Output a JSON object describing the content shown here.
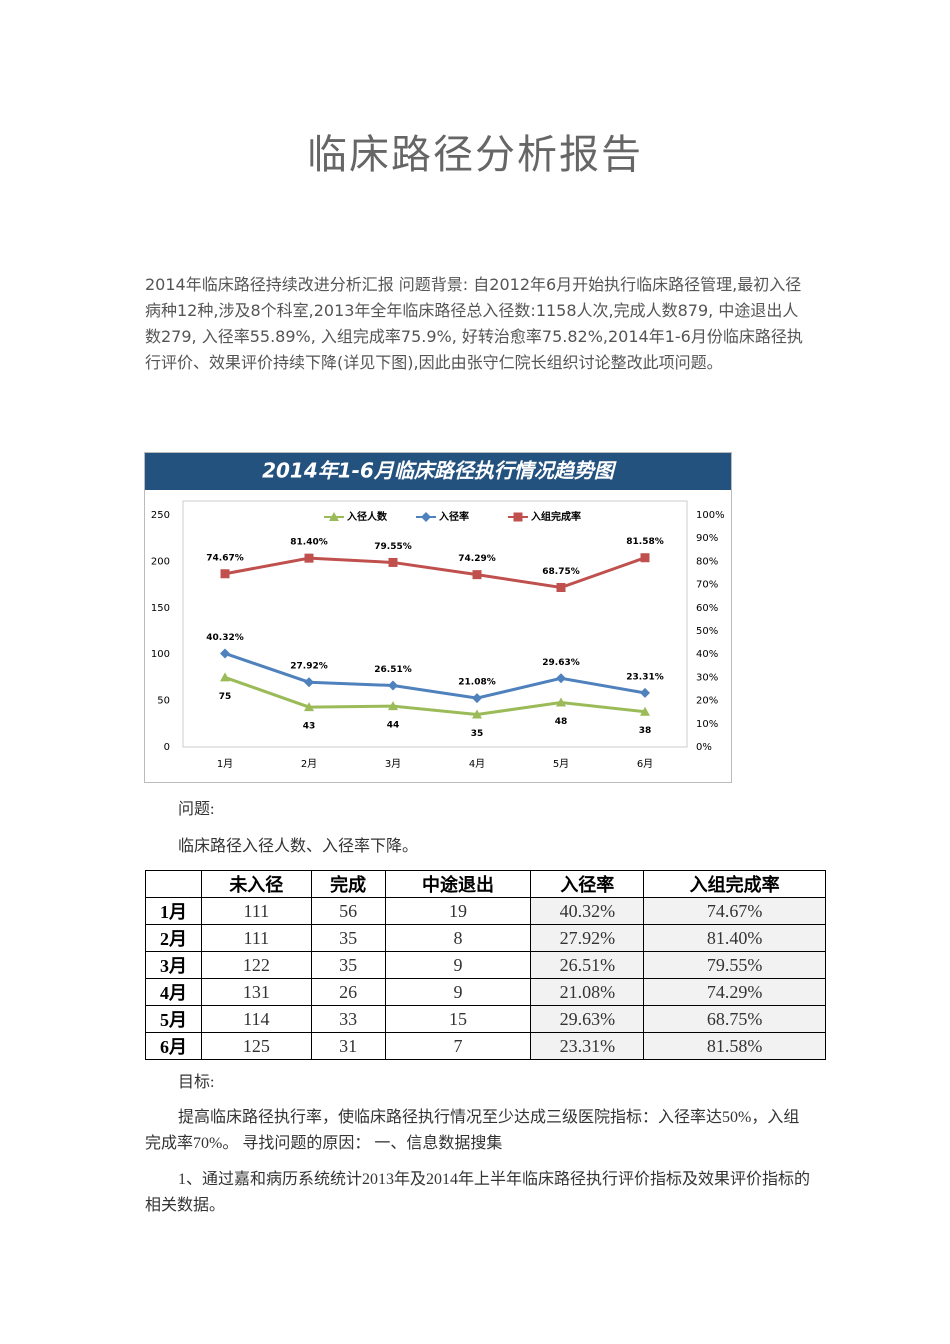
{
  "title": "临床路径分析报告",
  "paragraphs": [
    "2014年临床路径持续改进分析汇报  问题背景:  自2012年6月开始执行临床路径管理,最初入径病种12种,涉及8个科室,2013年全年临床路径总入径数:1158人次,完成人数879, 中途退出人数279, 入径率55.89%, 入组完成率75.9%, 好转治愈率75.82%,2014年1-6月份临床路径执行评价、效果评价持续下降(详见下图),因此由张守仁院长组织讨论整改此项问题。",
    "问题:",
    "临床路径入径人数、入径率下降。",
    "目标:",
    "提高临床路径执行率，使临床路径执行情况至少达成三级医院指标：入径率达50%，入组完成率70%。 寻找问题的原因： 一、信息数据搜集",
    "1、通过嘉和病历系统统计2013年及2014年上半年临床路径执行评价指标及效果评价指标的相关数据。"
  ],
  "chart_data": {
    "type": "line",
    "title": "2014年1-6月临床路径执行情况趋势图",
    "categories": [
      "1月",
      "2月",
      "3月",
      "4月",
      "5月",
      "6月"
    ],
    "series": [
      {
        "name": "入径人数",
        "color": "#9bbb59",
        "marker": "triangle",
        "values": [
          75,
          43,
          44,
          35,
          48,
          38
        ]
      },
      {
        "name": "入径率",
        "color": "#4f81bd",
        "marker": "diamond",
        "axis": "y2",
        "values": [
          40.32,
          27.92,
          26.51,
          21.08,
          29.63,
          23.31
        ],
        "value_labels": [
          "40.32%",
          "27.92%",
          "26.51%",
          "21.08%",
          "29.63%",
          "23.31%"
        ]
      },
      {
        "name": "入组完成率",
        "color": "#c0504d",
        "marker": "square",
        "axis": "y2",
        "values": [
          74.67,
          81.4,
          79.55,
          74.29,
          68.75,
          81.58
        ],
        "value_labels": [
          "74.67%",
          "81.40%",
          "79.55%",
          "74.29%",
          "68.75%",
          "81.58%"
        ]
      }
    ],
    "ylim": [
      0,
      250
    ],
    "yticks": [
      0,
      50,
      100,
      150,
      200,
      250
    ],
    "y2lim": [
      0,
      100
    ],
    "y2ticks": [
      {
        "value": 0,
        "label": "0%"
      },
      {
        "value": 10,
        "label": "10%"
      },
      {
        "value": 20,
        "label": "20%"
      },
      {
        "value": 30,
        "label": "30%"
      },
      {
        "value": 40,
        "label": "40%"
      },
      {
        "value": 50,
        "label": "50%"
      },
      {
        "value": 60,
        "label": "60%"
      },
      {
        "value": 70,
        "label": "70%"
      },
      {
        "value": 80,
        "label": "80%"
      },
      {
        "value": 90,
        "label": "90%"
      },
      {
        "value": 100,
        "label": "100%"
      }
    ],
    "grid": false,
    "legend": "top"
  },
  "table": {
    "columns": [
      "未入径",
      "完成",
      "中途退出",
      "入径率",
      "入组完成率"
    ],
    "rows": [
      [
        "1月",
        111,
        56,
        19,
        "40.32%",
        "74.67%"
      ],
      [
        "2月",
        111,
        35,
        8,
        "27.92%",
        "81.40%"
      ],
      [
        "3月",
        122,
        35,
        9,
        "26.51%",
        "79.55%"
      ],
      [
        "4月",
        131,
        26,
        9,
        "21.08%",
        "74.29%"
      ],
      [
        "5月",
        114,
        33,
        15,
        "29.63%",
        "68.75%"
      ],
      [
        "6月",
        125,
        31,
        7,
        "23.31%",
        "81.58%"
      ]
    ]
  }
}
